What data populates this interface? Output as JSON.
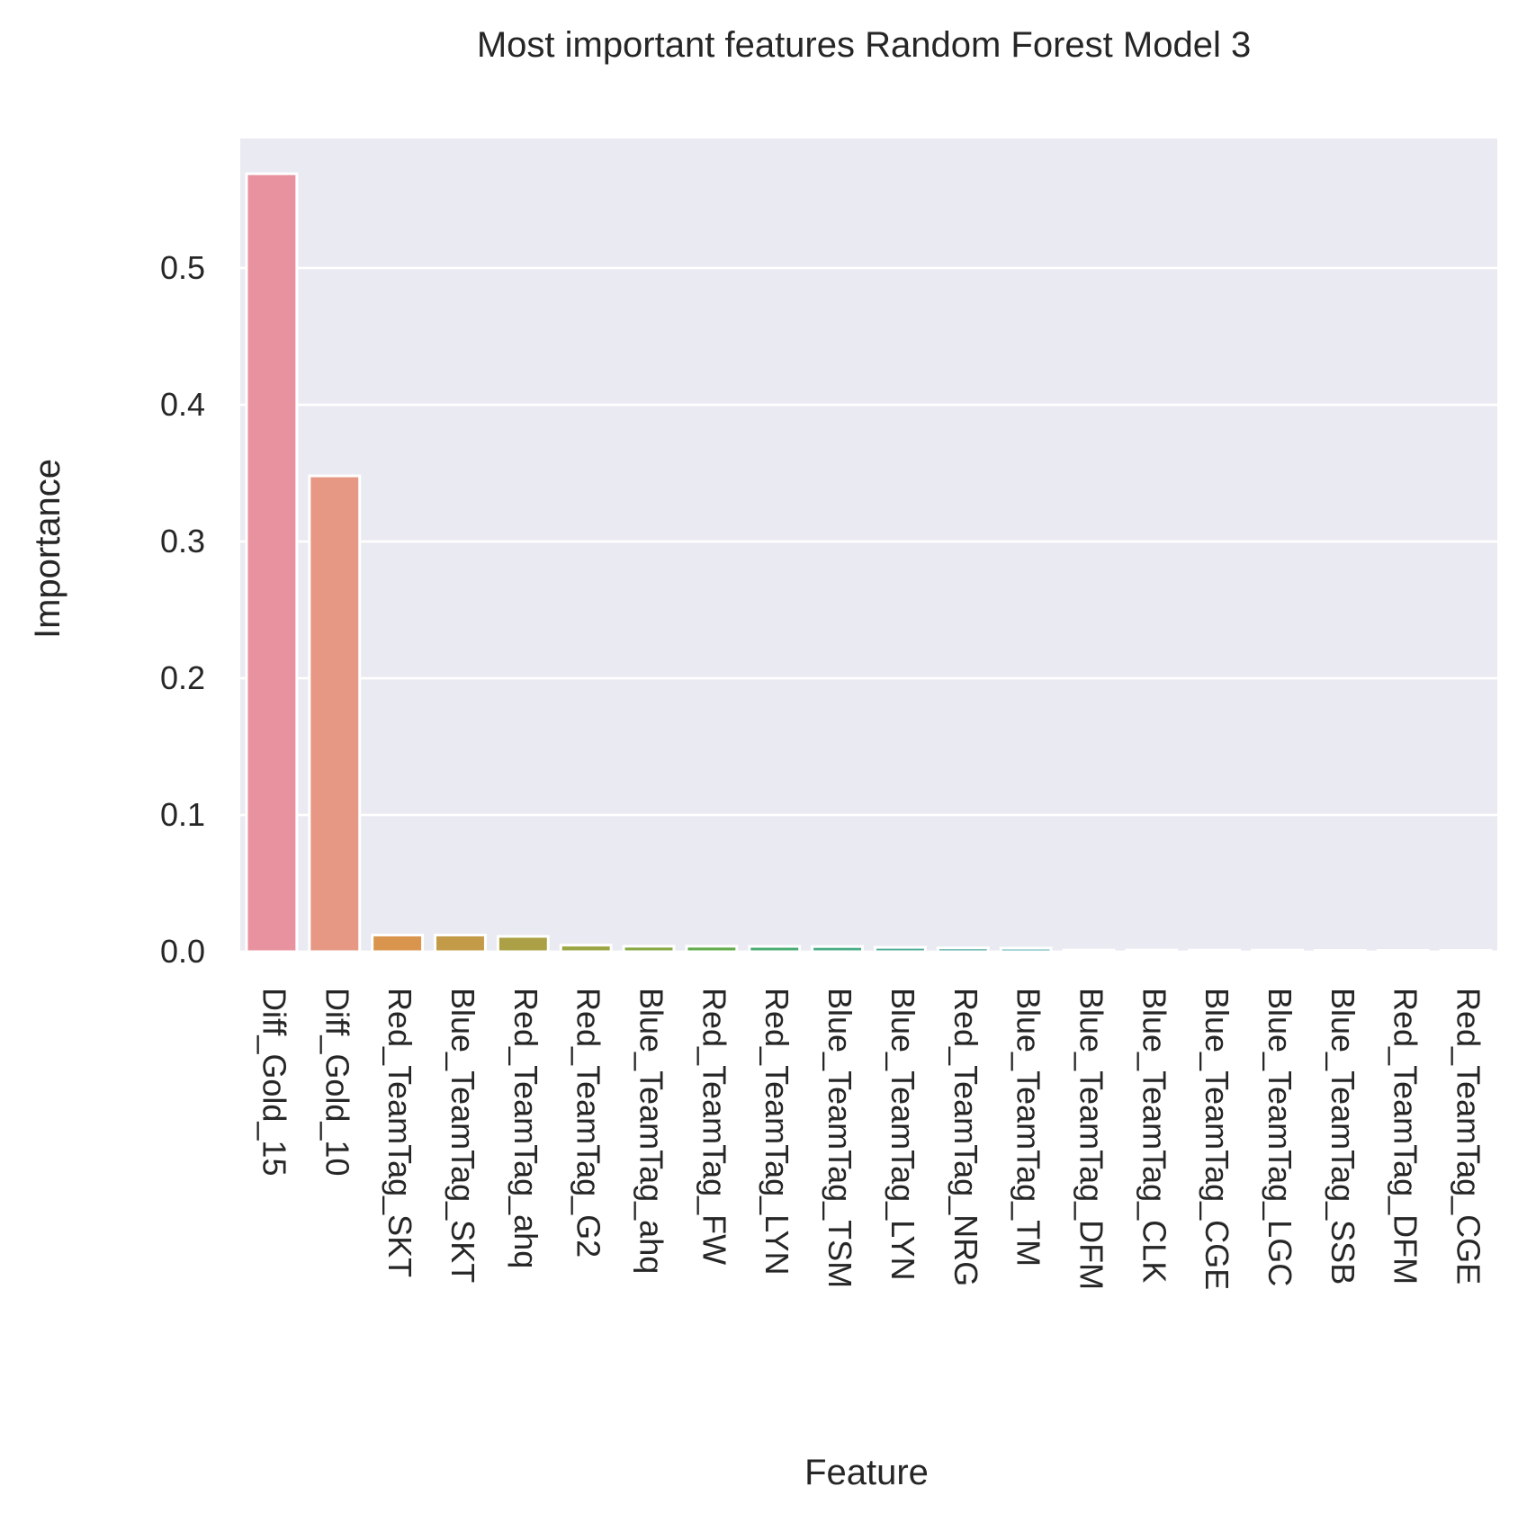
{
  "chart_data": {
    "type": "bar",
    "title": "Most important features Random Forest Model 3",
    "xlabel": "Feature",
    "ylabel": "Importance",
    "ylim": [
      0,
      0.6
    ],
    "yticks": [
      "0.0",
      "0.1",
      "0.2",
      "0.3",
      "0.4",
      "0.5"
    ],
    "grid": true,
    "categories": [
      "Diff_Gold_15",
      "Diff_Gold_10",
      "Red_TeamTag_SKT",
      "Blue_TeamTag_SKT",
      "Red_TeamTag_ahq",
      "Red_TeamTag_G2",
      "Blue_TeamTag_ahq",
      "Red_TeamTag_FW",
      "Red_TeamTag_LYN",
      "Blue_TeamTag_TSM",
      "Blue_TeamTag_LYN",
      "Red_TeamTag_NRG",
      "Blue_TeamTag_TM",
      "Blue_TeamTag_DFM",
      "Blue_TeamTag_CLK",
      "Blue_TeamTag_CGE",
      "Blue_TeamTag_LGC",
      "Blue_TeamTag_SSB",
      "Red_TeamTag_DFM",
      "Red_TeamTag_CGE"
    ],
    "values": [
      0.569,
      0.348,
      0.0122,
      0.0122,
      0.0112,
      0.0048,
      0.004,
      0.004,
      0.0039,
      0.0038,
      0.0032,
      0.0028,
      0.0026,
      0.0012,
      0.0012,
      0.0011,
      0.0011,
      0.001,
      0.0009,
      0.0003
    ],
    "colors": [
      "#e8929f",
      "#e69885",
      "#d9954d",
      "#c39a47",
      "#aba045",
      "#9ba443",
      "#86a843",
      "#62ac4b",
      "#48ac72",
      "#4aad86",
      "#4bab95",
      "#4daaa1",
      "#4ea9ad",
      "#52a7ba",
      "#5aa4c9",
      "#7a9cdd",
      "#9a93df",
      "#b98ce2",
      "#d585d4",
      "#e48cbb"
    ],
    "background": "#eaeaf2",
    "grid_color": "#ffffff"
  }
}
